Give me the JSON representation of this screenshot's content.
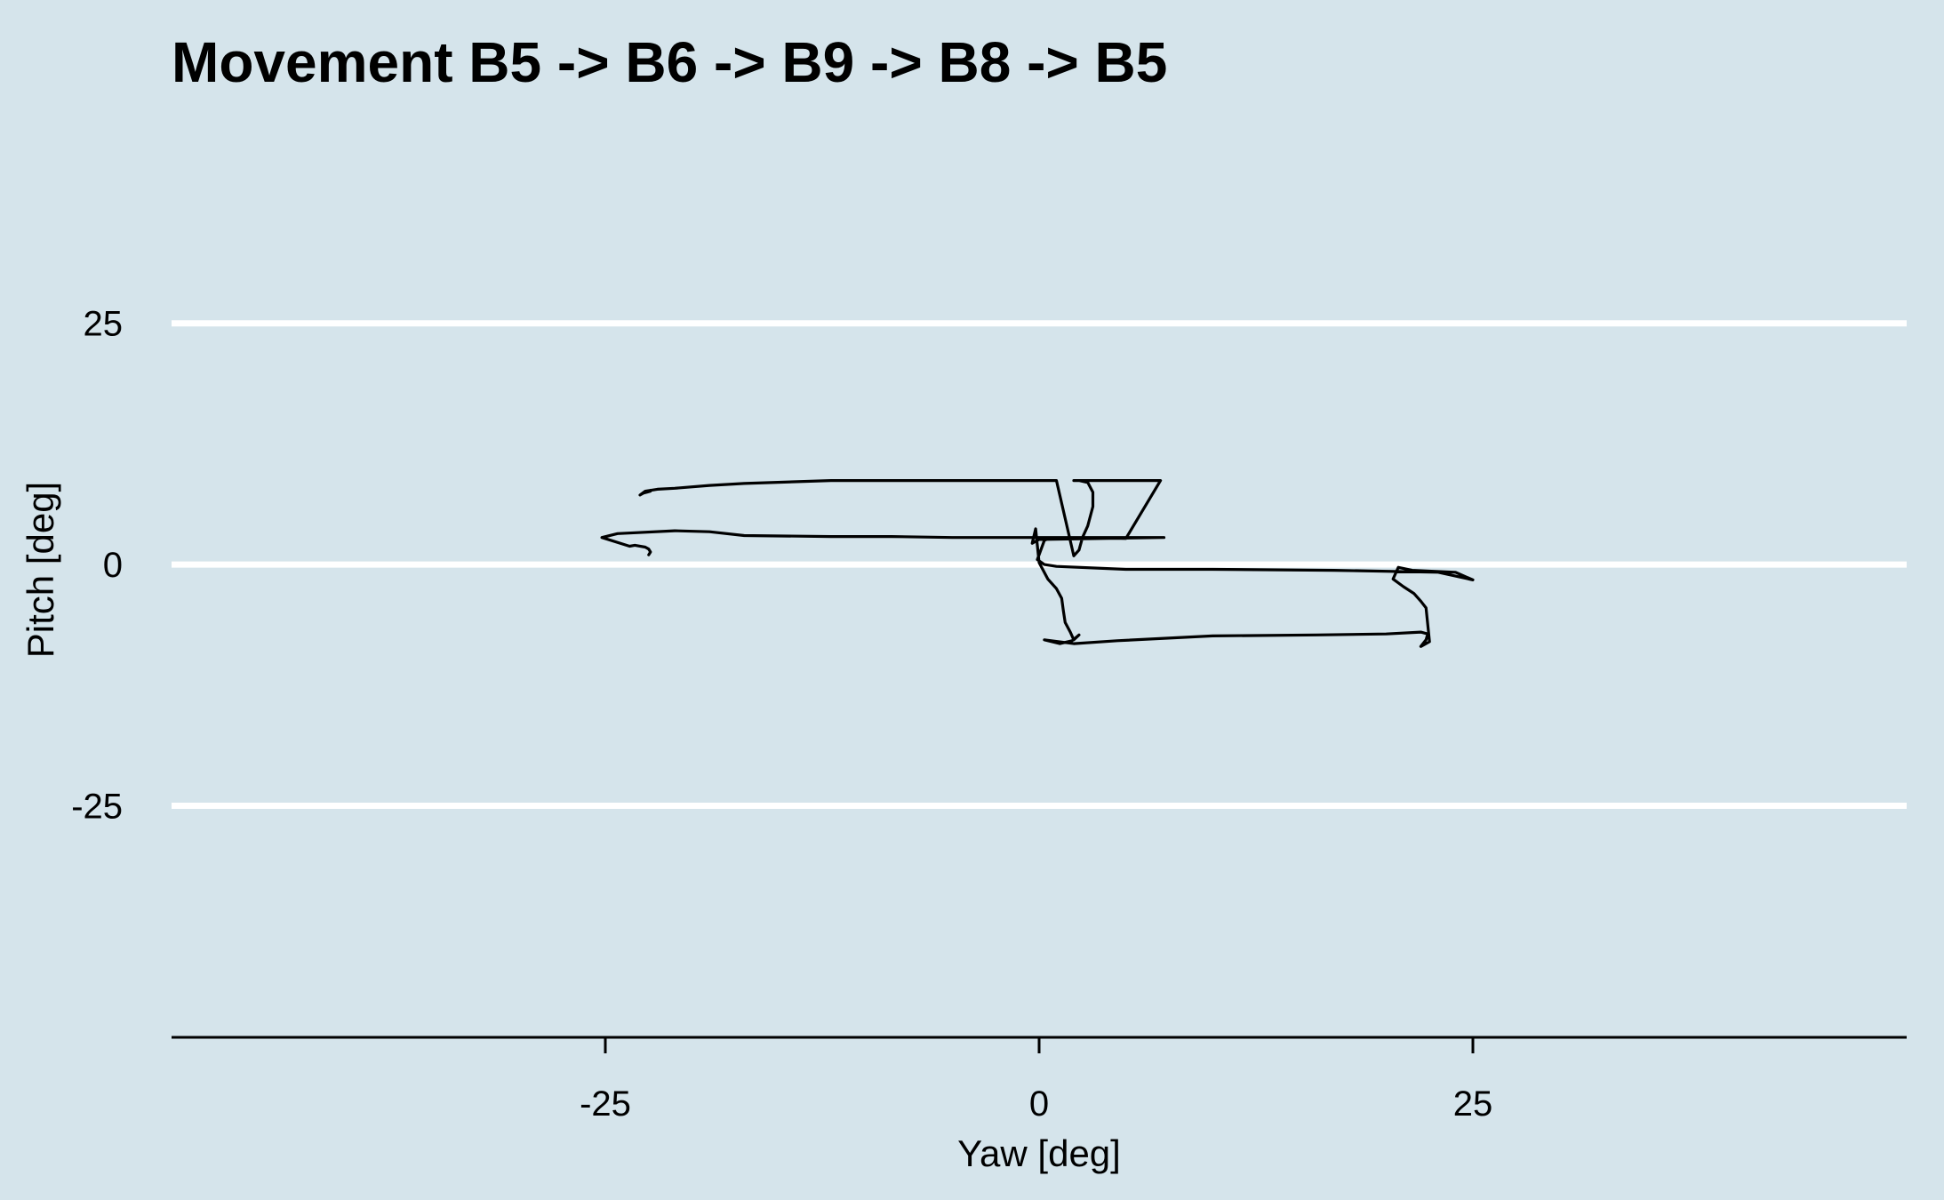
{
  "chart_data": {
    "type": "line",
    "title": "Movement B5 -> B6 -> B9 -> B8 -> B5",
    "xlabel": "Yaw [deg]",
    "ylabel": "Pitch [deg]",
    "xlim": [
      -50,
      50
    ],
    "ylim": [
      -49,
      41
    ],
    "xticks": [
      {
        "value": -25,
        "label": "-25"
      },
      {
        "value": 0,
        "label": "0"
      },
      {
        "value": 25,
        "label": "25"
      }
    ],
    "yticks": [
      {
        "value": 25,
        "label": "25"
      },
      {
        "value": 0,
        "label": "0"
      },
      {
        "value": -25,
        "label": "-25"
      }
    ],
    "grid": "horizontal major",
    "legend": "none",
    "colors": {
      "background": "#d5e4eb",
      "gridline": "#ffffff",
      "line": "#000000",
      "axis": "#000000"
    },
    "series": [
      {
        "x": [
          -22.5,
          -22.4,
          -22.5,
          -22.7,
          -23.3,
          -23.6,
          -25.2,
          -24.3,
          -21.0,
          -19.0,
          -17.0,
          -12.0,
          -8.5,
          -5.0,
          0.0,
          5.0,
          7.2,
          0.0,
          -0.4,
          -0.2,
          0.0,
          0.5,
          1.0,
          1.3,
          1.4,
          1.5,
          1.8,
          2.0,
          2.3,
          1.9,
          1.2,
          0.3,
          2.0,
          4.5,
          10.0,
          16.0,
          20.0,
          22.0,
          22.4,
          22.3,
          22.0,
          22.5,
          22.3,
          22.0,
          21.6,
          21.0,
          20.4,
          20.7,
          21.5,
          24.0,
          25.0,
          23.0,
          17.0,
          10.0,
          5.0,
          1.0,
          0.3,
          -0.1,
          0.3,
          0.7,
          2.5,
          5.0,
          7.0,
          2.0,
          2.3,
          2.8,
          3.1,
          3.1,
          2.8,
          2.5,
          2.3,
          2.0,
          1.0,
          -5.0,
          -8.5,
          -12.0,
          -17.0,
          -19.0,
          -21.0,
          -22.0,
          -22.7,
          -23.0,
          -22.8,
          -22.6,
          -22.4,
          -22.4,
          -22.6
        ],
        "y": [
          1.0,
          1.3,
          1.6,
          1.8,
          2.0,
          1.9,
          2.8,
          3.2,
          3.5,
          3.4,
          3.0,
          2.9,
          2.9,
          2.8,
          2.8,
          2.8,
          2.8,
          2.6,
          2.2,
          3.7,
          0.2,
          -1.5,
          -2.5,
          -3.5,
          -4.8,
          -6.0,
          -7.0,
          -7.8,
          -7.3,
          -7.9,
          -8.2,
          -7.8,
          -8.2,
          -7.9,
          -7.4,
          -7.3,
          -7.2,
          -7.0,
          -7.2,
          -7.8,
          -8.5,
          -8.0,
          -4.5,
          -3.8,
          -3.0,
          -2.3,
          -1.5,
          -0.3,
          -0.6,
          -0.8,
          -1.6,
          -0.8,
          -0.6,
          -0.5,
          -0.5,
          -0.2,
          0.0,
          0.5,
          2.5,
          2.8,
          2.8,
          2.7,
          8.7,
          8.7,
          8.7,
          8.5,
          7.5,
          6.0,
          4.0,
          2.8,
          1.5,
          0.9,
          8.7,
          8.7,
          8.7,
          8.7,
          8.4,
          8.2,
          7.9,
          7.8,
          7.6,
          7.2,
          7.4,
          7.5,
          7.7,
          7.6,
          7.5
        ]
      }
    ]
  }
}
